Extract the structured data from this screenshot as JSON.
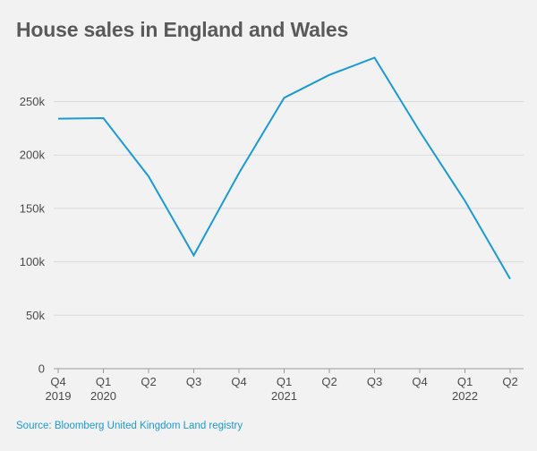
{
  "chart_data": {
    "type": "line",
    "title": "House sales in England and Wales",
    "source": "Source: Bloomberg United Kingdom Land registry",
    "x_ticks": [
      {
        "top": "Q4",
        "bottom": "2019"
      },
      {
        "top": "Q1",
        "bottom": "2020"
      },
      {
        "top": "Q2",
        "bottom": ""
      },
      {
        "top": "Q3",
        "bottom": ""
      },
      {
        "top": "Q4",
        "bottom": ""
      },
      {
        "top": "Q1",
        "bottom": "2021"
      },
      {
        "top": "Q2",
        "bottom": ""
      },
      {
        "top": "Q3",
        "bottom": ""
      },
      {
        "top": "Q4",
        "bottom": ""
      },
      {
        "top": "Q1",
        "bottom": "2022"
      },
      {
        "top": "Q2",
        "bottom": ""
      }
    ],
    "categories": [
      "Q4 2019",
      "Q1 2020",
      "Q2 2020",
      "Q3 2020",
      "Q4 2020",
      "Q1 2021",
      "Q2 2021",
      "Q3 2021",
      "Q4 2021",
      "Q1 2022",
      "Q2 2022"
    ],
    "values": [
      234000,
      234500,
      180000,
      106000,
      183000,
      253500,
      275000,
      291000,
      222000,
      157000,
      84000
    ],
    "y_ticks": [
      0,
      50000,
      100000,
      150000,
      200000,
      250000
    ],
    "y_tick_labels": [
      "0",
      "50k",
      "100k",
      "150k",
      "200k",
      "250k"
    ],
    "ylim": [
      0,
      300000
    ],
    "grid": true,
    "line_color": "#1b9ad6",
    "grid_color": "#d9d9d9"
  }
}
